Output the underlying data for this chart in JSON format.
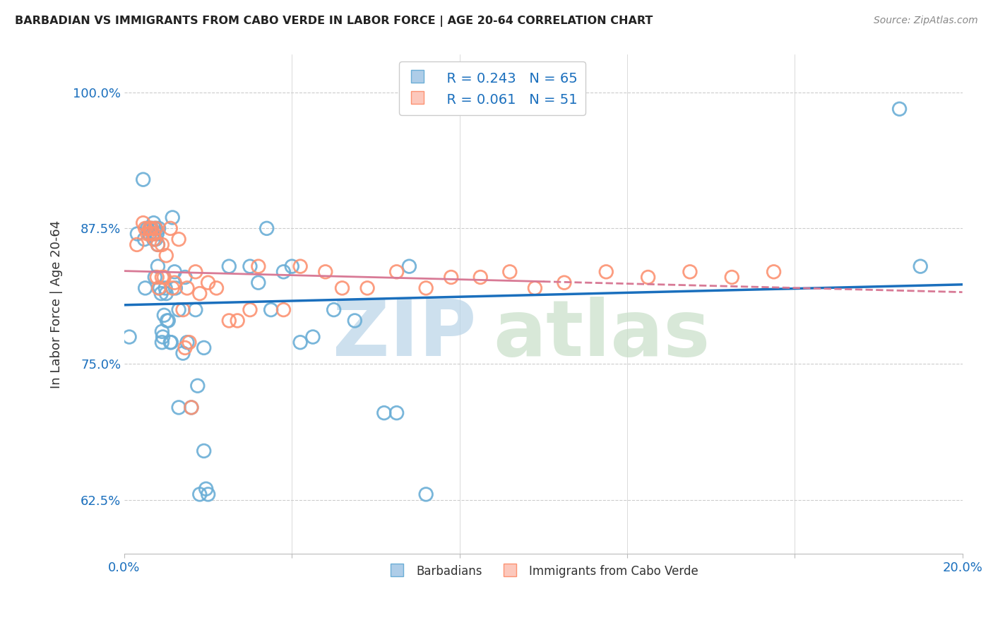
{
  "title": "BARBADIAN VS IMMIGRANTS FROM CABO VERDE IN LABOR FORCE | AGE 20-64 CORRELATION CHART",
  "source": "Source: ZipAtlas.com",
  "ylabel_label": "In Labor Force | Age 20-64",
  "xlim": [
    0.0,
    0.2
  ],
  "ylim": [
    0.575,
    1.035
  ],
  "xticks": [
    0.0,
    0.04,
    0.08,
    0.12,
    0.16,
    0.2
  ],
  "xticklabels": [
    "0.0%",
    "",
    "",
    "",
    "",
    "20.0%"
  ],
  "yticks": [
    0.625,
    0.75,
    0.875,
    1.0
  ],
  "yticklabels": [
    "62.5%",
    "75.0%",
    "87.5%",
    "100.0%"
  ],
  "grid_color": "#cccccc",
  "background_color": "#ffffff",
  "barbadian_color": "#6baed6",
  "cabo_verde_color": "#fc9272",
  "barbadian_R": 0.243,
  "barbadian_N": 65,
  "cabo_verde_R": 0.061,
  "cabo_verde_N": 51,
  "blue_line_color": "#1a6fbd",
  "pink_line_color": "#d87a96",
  "legend_label_blue": "Barbadians",
  "legend_label_pink": "Immigrants from Cabo Verde",
  "barbadian_x": [
    0.0012,
    0.0031,
    0.0045,
    0.0048,
    0.005,
    0.0055,
    0.006,
    0.0062,
    0.0065,
    0.0068,
    0.007,
    0.007,
    0.0072,
    0.0073,
    0.0075,
    0.0075,
    0.0078,
    0.008,
    0.008,
    0.0082,
    0.0085,
    0.0088,
    0.009,
    0.009,
    0.0092,
    0.0095,
    0.0098,
    0.01,
    0.0102,
    0.0105,
    0.011,
    0.0112,
    0.0115,
    0.012,
    0.0122,
    0.013,
    0.013,
    0.014,
    0.0145,
    0.015,
    0.016,
    0.017,
    0.0175,
    0.018,
    0.019,
    0.019,
    0.0195,
    0.02,
    0.025,
    0.03,
    0.032,
    0.034,
    0.035,
    0.038,
    0.04,
    0.042,
    0.045,
    0.05,
    0.055,
    0.062,
    0.065,
    0.068,
    0.072,
    0.185,
    0.19
  ],
  "barbadian_y": [
    0.775,
    0.87,
    0.92,
    0.865,
    0.82,
    0.875,
    0.87,
    0.875,
    0.875,
    0.87,
    0.865,
    0.88,
    0.875,
    0.83,
    0.875,
    0.865,
    0.87,
    0.86,
    0.84,
    0.875,
    0.82,
    0.815,
    0.78,
    0.77,
    0.775,
    0.795,
    0.82,
    0.815,
    0.79,
    0.79,
    0.77,
    0.77,
    0.885,
    0.835,
    0.82,
    0.8,
    0.71,
    0.76,
    0.83,
    0.77,
    0.71,
    0.8,
    0.73,
    0.63,
    0.765,
    0.67,
    0.635,
    0.63,
    0.84,
    0.84,
    0.825,
    0.875,
    0.8,
    0.835,
    0.84,
    0.77,
    0.775,
    0.8,
    0.79,
    0.705,
    0.705,
    0.84,
    0.63,
    0.985,
    0.84
  ],
  "cabo_verde_x": [
    0.003,
    0.0045,
    0.005,
    0.0055,
    0.006,
    0.0062,
    0.0065,
    0.007,
    0.0072,
    0.0075,
    0.0078,
    0.008,
    0.0082,
    0.009,
    0.009,
    0.0095,
    0.01,
    0.011,
    0.0115,
    0.012,
    0.013,
    0.014,
    0.0145,
    0.015,
    0.0155,
    0.016,
    0.017,
    0.018,
    0.02,
    0.022,
    0.025,
    0.027,
    0.03,
    0.032,
    0.038,
    0.042,
    0.048,
    0.052,
    0.058,
    0.065,
    0.072,
    0.078,
    0.085,
    0.092,
    0.098,
    0.105,
    0.115,
    0.125,
    0.135,
    0.145,
    0.155
  ],
  "cabo_verde_y": [
    0.86,
    0.88,
    0.875,
    0.87,
    0.875,
    0.87,
    0.875,
    0.87,
    0.865,
    0.875,
    0.83,
    0.86,
    0.82,
    0.83,
    0.86,
    0.83,
    0.85,
    0.875,
    0.82,
    0.825,
    0.865,
    0.8,
    0.765,
    0.82,
    0.77,
    0.71,
    0.835,
    0.815,
    0.825,
    0.82,
    0.79,
    0.79,
    0.8,
    0.84,
    0.8,
    0.84,
    0.835,
    0.82,
    0.82,
    0.835,
    0.82,
    0.83,
    0.83,
    0.835,
    0.82,
    0.825,
    0.835,
    0.83,
    0.835,
    0.83,
    0.835
  ]
}
